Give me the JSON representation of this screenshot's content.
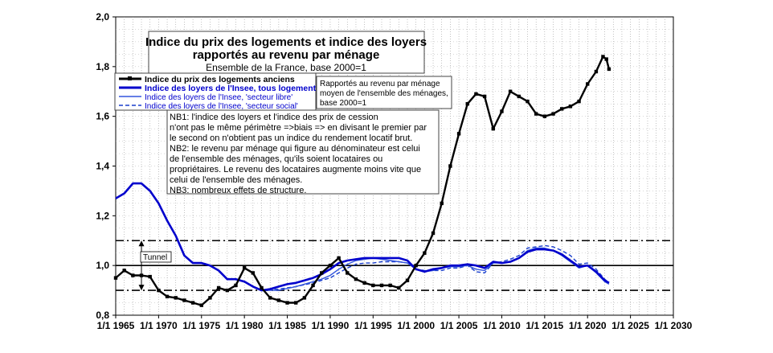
{
  "chart_data": {
    "type": "line",
    "title_line1": "Indice du prix des logements et indice des loyers",
    "title_line2": "rapportés au revenu par ménage",
    "subtitle": "Ensemble de la France, base 2000=1",
    "xlim": [
      1965,
      2030
    ],
    "ylim": [
      0.8,
      2.0
    ],
    "x_ticks": [
      {
        "value": 1965,
        "label": "1/1 1965"
      },
      {
        "value": 1970,
        "label": "1/1 1970"
      },
      {
        "value": 1975,
        "label": "1/1 1975"
      },
      {
        "value": 1980,
        "label": "1/1 1980"
      },
      {
        "value": 1985,
        "label": "1/1 1985"
      },
      {
        "value": 1990,
        "label": "1/1 1990"
      },
      {
        "value": 1995,
        "label": "1/1 1995"
      },
      {
        "value": 2000,
        "label": "1/1 2000"
      },
      {
        "value": 2005,
        "label": "1/1 2005"
      },
      {
        "value": 2010,
        "label": "1/1 2010"
      },
      {
        "value": 2015,
        "label": "1/1 2015"
      },
      {
        "value": 2020,
        "label": "1/1 2020"
      },
      {
        "value": 2025,
        "label": "1/1 2025"
      },
      {
        "value": 2030,
        "label": "1/1 2030"
      }
    ],
    "y_ticks": [
      {
        "value": 0.8,
        "label": "0,8"
      },
      {
        "value": 1.0,
        "label": "1,0"
      },
      {
        "value": 1.2,
        "label": "1,2"
      },
      {
        "value": 1.4,
        "label": "1,4"
      },
      {
        "value": 1.6,
        "label": "1,6"
      },
      {
        "value": 1.8,
        "label": "1,8"
      },
      {
        "value": 2.0,
        "label": "2,0"
      }
    ],
    "grid": "vertical dotted minor, horizontal dotted",
    "reference_lines": [
      {
        "y": 1.0,
        "style": "solid"
      },
      {
        "y": 1.1,
        "style": "dash-dot"
      },
      {
        "y": 0.9,
        "style": "dash-dot"
      }
    ],
    "tunnel": {
      "label": "Tunnel",
      "x": 1968,
      "y_from": 0.9,
      "y_to": 1.1
    },
    "legend_position": "top-left",
    "series": [
      {
        "name": "Indice du prix des logements anciens",
        "color": "#000000",
        "style": "solid-markers",
        "points": [
          [
            1965,
            0.95
          ],
          [
            1966,
            0.98
          ],
          [
            1967,
            0.96
          ],
          [
            1968,
            0.96
          ],
          [
            1969,
            0.955
          ],
          [
            1970,
            0.9
          ],
          [
            1971,
            0.875
          ],
          [
            1972,
            0.87
          ],
          [
            1973,
            0.86
          ],
          [
            1974,
            0.85
          ],
          [
            1975,
            0.84
          ],
          [
            1976,
            0.87
          ],
          [
            1977,
            0.91
          ],
          [
            1978,
            0.9
          ],
          [
            1979,
            0.92
          ],
          [
            1980,
            0.99
          ],
          [
            1981,
            0.97
          ],
          [
            1982,
            0.91
          ],
          [
            1983,
            0.87
          ],
          [
            1984,
            0.86
          ],
          [
            1985,
            0.85
          ],
          [
            1986,
            0.85
          ],
          [
            1987,
            0.87
          ],
          [
            1988,
            0.92
          ],
          [
            1989,
            0.97
          ],
          [
            1990,
            1.0
          ],
          [
            1991,
            1.03
          ],
          [
            1992,
            0.97
          ],
          [
            1993,
            0.945
          ],
          [
            1994,
            0.93
          ],
          [
            1995,
            0.92
          ],
          [
            1996,
            0.92
          ],
          [
            1997,
            0.92
          ],
          [
            1998,
            0.91
          ],
          [
            1999,
            0.94
          ],
          [
            2000,
            1.0
          ],
          [
            2001,
            1.05
          ],
          [
            2002,
            1.13
          ],
          [
            2003,
            1.25
          ],
          [
            2004,
            1.4
          ],
          [
            2005,
            1.53
          ],
          [
            2006,
            1.65
          ],
          [
            2007,
            1.69
          ],
          [
            2008,
            1.68
          ],
          [
            2009,
            1.55
          ],
          [
            2010,
            1.62
          ],
          [
            2011,
            1.7
          ],
          [
            2012,
            1.68
          ],
          [
            2013,
            1.66
          ],
          [
            2014,
            1.61
          ],
          [
            2015,
            1.6
          ],
          [
            2016,
            1.61
          ],
          [
            2017,
            1.63
          ],
          [
            2018,
            1.64
          ],
          [
            2019,
            1.66
          ],
          [
            2020,
            1.73
          ],
          [
            2021,
            1.78
          ],
          [
            2021.8,
            1.84
          ],
          [
            2022.2,
            1.83
          ],
          [
            2022.5,
            1.79
          ]
        ]
      },
      {
        "name": "Indice des loyers de l'Insee, tous logements",
        "color": "#0000cc",
        "style": "solid-thick",
        "points": [
          [
            1965,
            1.27
          ],
          [
            1966,
            1.29
          ],
          [
            1967,
            1.33
          ],
          [
            1968,
            1.33
          ],
          [
            1969,
            1.3
          ],
          [
            1970,
            1.25
          ],
          [
            1971,
            1.18
          ],
          [
            1972,
            1.12
          ],
          [
            1973,
            1.04
          ],
          [
            1974,
            1.01
          ],
          [
            1975,
            1.01
          ],
          [
            1976,
            1.0
          ],
          [
            1977,
            0.98
          ],
          [
            1978,
            0.945
          ],
          [
            1979,
            0.945
          ],
          [
            1980,
            0.935
          ],
          [
            1981,
            0.915
          ],
          [
            1982,
            0.9
          ],
          [
            1983,
            0.905
          ],
          [
            1984,
            0.915
          ],
          [
            1985,
            0.925
          ],
          [
            1986,
            0.93
          ],
          [
            1987,
            0.94
          ],
          [
            1988,
            0.95
          ],
          [
            1989,
            0.965
          ],
          [
            1990,
            0.985
          ],
          [
            1991,
            1.01
          ],
          [
            1992,
            1.02
          ],
          [
            1993,
            1.025
          ],
          [
            1994,
            1.03
          ],
          [
            1995,
            1.03
          ],
          [
            1996,
            1.03
          ],
          [
            1997,
            1.03
          ],
          [
            1998,
            1.03
          ],
          [
            1999,
            1.02
          ],
          [
            2000,
            0.985
          ],
          [
            2001,
            0.975
          ],
          [
            2002,
            0.985
          ],
          [
            2003,
            0.99
          ],
          [
            2004,
            1.0
          ],
          [
            2005,
            1.0
          ],
          [
            2006,
            1.005
          ],
          [
            2007,
            1.0
          ],
          [
            2008,
            0.99
          ],
          [
            2009,
            1.015
          ],
          [
            2010,
            1.01
          ],
          [
            2011,
            1.015
          ],
          [
            2012,
            1.03
          ],
          [
            2013,
            1.055
          ],
          [
            2014,
            1.065
          ],
          [
            2015,
            1.065
          ],
          [
            2016,
            1.06
          ],
          [
            2017,
            1.045
          ],
          [
            2018,
            1.02
          ],
          [
            2019,
            0.995
          ],
          [
            2020,
            1.0
          ],
          [
            2021,
            0.975
          ],
          [
            2022,
            0.94
          ],
          [
            2022.5,
            0.93
          ]
        ]
      },
      {
        "name": "Indice des loyers de l'Insee, 'secteur libre'",
        "color": "#3355dd",
        "style": "solid-thin",
        "points": [
          [
            1982,
            0.9
          ],
          [
            1984,
            0.9
          ],
          [
            1986,
            0.915
          ],
          [
            1988,
            0.935
          ],
          [
            1989,
            0.945
          ],
          [
            1990,
            0.96
          ],
          [
            1991,
            0.985
          ],
          [
            1992,
            1.005
          ],
          [
            1993,
            1.02
          ],
          [
            1994,
            1.025
          ],
          [
            1995,
            1.03
          ],
          [
            1996,
            1.025
          ],
          [
            1997,
            1.02
          ],
          [
            1998,
            1.015
          ],
          [
            1999,
            1.01
          ],
          [
            2000,
            0.985
          ],
          [
            2001,
            0.975
          ],
          [
            2002,
            0.98
          ],
          [
            2003,
            0.99
          ],
          [
            2004,
            0.995
          ],
          [
            2005,
            0.995
          ],
          [
            2006,
            1.0
          ],
          [
            2007,
            0.985
          ],
          [
            2008,
            0.98
          ],
          [
            2009,
            1.01
          ],
          [
            2010,
            1.01
          ],
          [
            2011,
            1.015
          ],
          [
            2012,
            1.03
          ],
          [
            2013,
            1.06
          ],
          [
            2014,
            1.07
          ],
          [
            2015,
            1.07
          ],
          [
            2016,
            1.06
          ],
          [
            2017,
            1.04
          ],
          [
            2018,
            1.015
          ],
          [
            2019,
            0.99
          ],
          [
            2020,
            1.0
          ],
          [
            2021,
            0.97
          ],
          [
            2022,
            0.935
          ],
          [
            2022.5,
            0.925
          ]
        ]
      },
      {
        "name": "Indice des loyers de l'Insee, 'secteur social'",
        "color": "#1a3fcc",
        "style": "dashed",
        "points": [
          [
            1982,
            0.9
          ],
          [
            1984,
            0.905
          ],
          [
            1986,
            0.915
          ],
          [
            1988,
            0.93
          ],
          [
            1989,
            0.94
          ],
          [
            1990,
            0.95
          ],
          [
            1991,
            0.97
          ],
          [
            1992,
            0.99
          ],
          [
            1993,
            1.005
          ],
          [
            1994,
            1.01
          ],
          [
            1995,
            1.01
          ],
          [
            1996,
            1.015
          ],
          [
            1997,
            1.015
          ],
          [
            1998,
            1.015
          ],
          [
            1999,
            1.01
          ],
          [
            2000,
            0.985
          ],
          [
            2001,
            0.98
          ],
          [
            2002,
            0.98
          ],
          [
            2003,
            0.98
          ],
          [
            2004,
            0.99
          ],
          [
            2005,
            0.99
          ],
          [
            2006,
            1.0
          ],
          [
            2007,
            0.975
          ],
          [
            2008,
            0.97
          ],
          [
            2009,
            1.01
          ],
          [
            2010,
            1.015
          ],
          [
            2011,
            1.025
          ],
          [
            2012,
            1.04
          ],
          [
            2013,
            1.07
          ],
          [
            2014,
            1.075
          ],
          [
            2015,
            1.08
          ],
          [
            2016,
            1.075
          ],
          [
            2017,
            1.06
          ],
          [
            2018,
            1.04
          ],
          [
            2019,
            1.005
          ],
          [
            2020,
            1.01
          ],
          [
            2021,
            0.985
          ],
          [
            2022,
            0.945
          ],
          [
            2022.5,
            0.93
          ]
        ]
      }
    ],
    "annotation_box": {
      "lines": [
        "Rapportés au revenu par ménage",
        "moyen de l'ensemble des ménages,",
        "base 2000=1"
      ]
    },
    "notes_box": {
      "lines": [
        "NB1: l'indice des loyers et l'indice des prix de cession",
        "n'ont pas le même périmètre =>biais => en divisant le premier par",
        "le second on n'obtient pas un indice du rendement locatif brut.",
        "NB2: le revenu par ménage qui figure au dénominateur est celui",
        "de l'ensemble des ménages, qu'ils soient locataires ou",
        "propriétaires.  Le revenu des locataires augmente moins vite que",
        "celui de l'ensemble des ménages.",
        "NB3: nombreux effets de structure."
      ]
    }
  }
}
